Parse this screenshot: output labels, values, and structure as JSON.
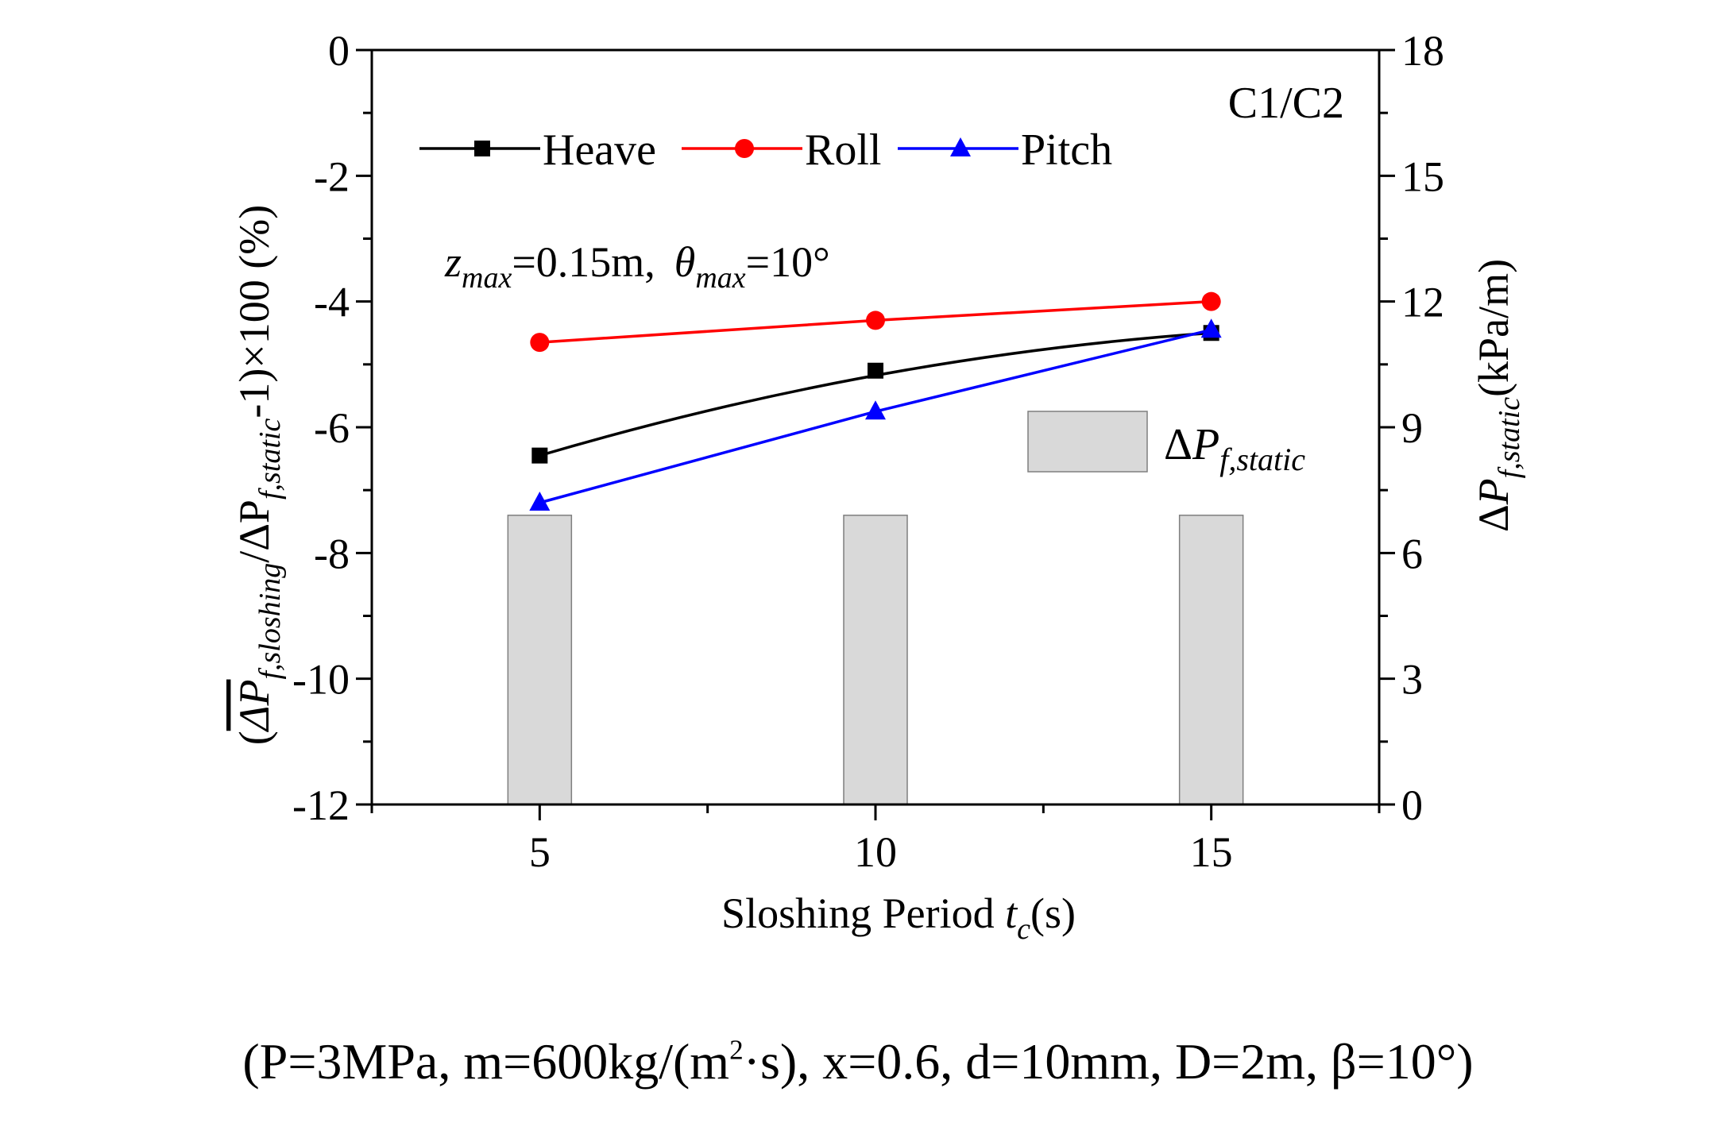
{
  "chart_data": {
    "type": "line",
    "x": [
      5,
      10,
      15
    ],
    "series": [
      {
        "name": "Heave",
        "color": "#000000",
        "marker": "square",
        "values": [
          -6.45,
          -5.1,
          -4.5
        ]
      },
      {
        "name": "Roll",
        "color": "#ff0000",
        "marker": "circle",
        "values": [
          -4.65,
          -4.3,
          -4.0
        ]
      },
      {
        "name": "Pitch",
        "color": "#0000ff",
        "marker": "triangle",
        "values": [
          -7.2,
          -5.75,
          -4.45
        ]
      }
    ],
    "bars": {
      "name": "ΔP_f,static",
      "color": "#d9d9d9",
      "edge": "#7f7f7f",
      "axis": "right",
      "x": [
        5,
        10,
        15
      ],
      "values": [
        6.9,
        6.9,
        6.9
      ]
    },
    "xlim": [
      2.5,
      17.5
    ],
    "ylim": [
      -12,
      0
    ],
    "y2lim": [
      0,
      18
    ],
    "xticks": [
      "5",
      "10",
      "15"
    ],
    "yticks": [
      "0",
      "-2",
      "-4",
      "-6",
      "-8",
      "-10",
      "-12"
    ],
    "y2ticks": [
      "18",
      "15",
      "12",
      "9",
      "6",
      "3",
      "0"
    ],
    "xlabel": {
      "main": "Sloshing Period ",
      "var": "t",
      "sub": "c",
      "unit": "(s)"
    },
    "ylabel": {
      "open": "(",
      "p1": "ΔP",
      "p1sub": "f,sloshing",
      "slash": "/ΔP",
      "p2sub": "f,static",
      "tail": "-1)×100 (%)"
    },
    "y2label": {
      "delta": "Δ",
      "p": "P",
      "sub": "f,static",
      "unit": "(kPa/m)"
    },
    "tag": "C1/C2",
    "annotation": {
      "z": "z",
      "zsub": "max",
      "zval": "=0.15m,",
      "theta": "θ",
      "thetasub": "max",
      "thetaval": "=10°"
    },
    "bar_legend": {
      "delta": "Δ",
      "p": "P",
      "sub": "f,static"
    }
  },
  "caption": {
    "pre": "(P=3MPa, m=600kg/(m",
    "sup": "2",
    "post": "·s), x=0.6, d=10mm, D=2m, β=10°)"
  }
}
